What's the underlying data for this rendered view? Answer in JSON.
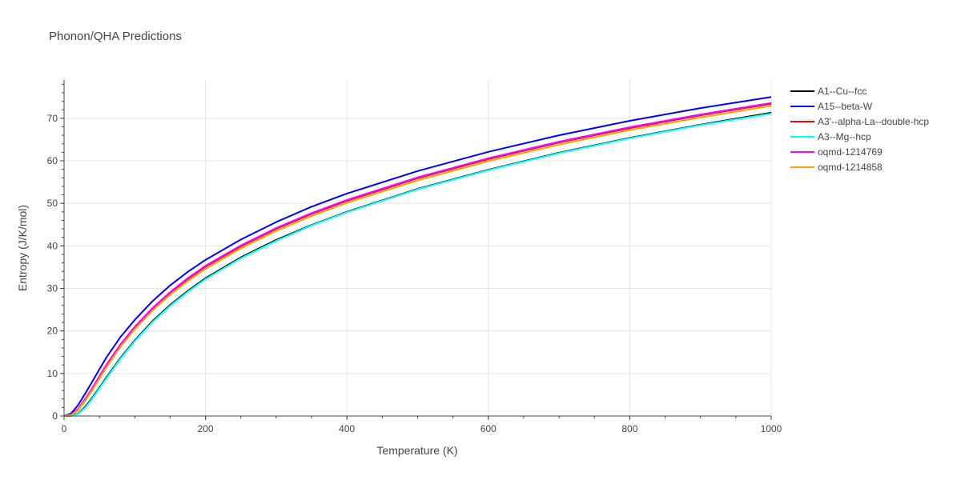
{
  "chart_data": {
    "type": "line",
    "title": "Phonon/QHA Predictions",
    "xlabel": "Temperature (K)",
    "ylabel": "Entropy (J/K/mol)",
    "xlim": [
      0,
      1000
    ],
    "ylim": [
      0,
      79
    ],
    "xticks": [
      0,
      200,
      400,
      600,
      800,
      1000
    ],
    "yticks": [
      0,
      10,
      20,
      30,
      40,
      50,
      60,
      70
    ],
    "grid": true,
    "legend_position": "top-right",
    "series": [
      {
        "name": "A1--Cu--fcc",
        "color": "#000000",
        "x": [
          0,
          10,
          20,
          30,
          40,
          50,
          60,
          80,
          100,
          125,
          150,
          175,
          200,
          250,
          300,
          350,
          400,
          500,
          600,
          700,
          800,
          900,
          1000
        ],
        "y": [
          0,
          0.05,
          0.6,
          2.2,
          4.3,
          6.7,
          9.1,
          13.7,
          17.8,
          22.3,
          26.1,
          29.4,
          32.4,
          37.3,
          41.4,
          44.9,
          48.0,
          53.4,
          57.9,
          61.9,
          65.4,
          68.5,
          71.3
        ]
      },
      {
        "name": "A15--beta-W",
        "color": "#0000ff",
        "x": [
          0,
          10,
          20,
          30,
          40,
          50,
          60,
          80,
          100,
          125,
          150,
          175,
          200,
          250,
          300,
          350,
          400,
          500,
          600,
          700,
          800,
          900,
          1000
        ],
        "y": [
          0,
          0.6,
          2.6,
          5.3,
          8.1,
          11.0,
          13.8,
          18.6,
          22.6,
          27.0,
          30.7,
          33.9,
          36.7,
          41.5,
          45.6,
          49.2,
          52.3,
          57.6,
          62.1,
          66.0,
          69.4,
          72.4,
          75.0
        ]
      },
      {
        "name": "A3'--alpha-La--double-hcp",
        "color": "#ff0000",
        "x": [
          0,
          10,
          20,
          30,
          40,
          50,
          60,
          80,
          100,
          125,
          150,
          175,
          200,
          250,
          300,
          350,
          400,
          500,
          600,
          700,
          800,
          900,
          1000
        ],
        "y": [
          0,
          0.3,
          1.6,
          3.9,
          6.5,
          9.3,
          12.0,
          16.8,
          20.9,
          25.3,
          29.0,
          32.2,
          35.1,
          39.9,
          44.0,
          47.5,
          50.6,
          55.9,
          60.4,
          64.3,
          67.7,
          70.7,
          73.4
        ]
      },
      {
        "name": "A3--Mg--hcp",
        "color": "#00ffff",
        "x": [
          0,
          10,
          20,
          30,
          40,
          50,
          60,
          80,
          100,
          125,
          150,
          175,
          200,
          250,
          300,
          350,
          400,
          500,
          600,
          700,
          800,
          900,
          1000
        ],
        "y": [
          0,
          0.04,
          0.5,
          2.0,
          4.1,
          6.5,
          8.9,
          13.5,
          17.6,
          22.1,
          25.9,
          29.2,
          32.2,
          37.1,
          41.2,
          44.8,
          47.9,
          53.3,
          57.8,
          61.8,
          65.3,
          68.4,
          71.1
        ]
      },
      {
        "name": "oqmd-1214769",
        "color": "#ff00ff",
        "x": [
          0,
          10,
          20,
          30,
          40,
          50,
          60,
          80,
          100,
          125,
          150,
          175,
          200,
          250,
          300,
          350,
          400,
          500,
          600,
          700,
          800,
          900,
          1000
        ],
        "y": [
          0,
          0.3,
          1.7,
          4.0,
          6.6,
          9.4,
          12.1,
          16.9,
          21.0,
          25.4,
          29.1,
          32.4,
          35.3,
          40.1,
          44.2,
          47.7,
          50.8,
          56.1,
          60.6,
          64.5,
          67.9,
          70.9,
          73.6
        ]
      },
      {
        "name": "oqmd-1214858",
        "color": "#ffa500",
        "x": [
          0,
          10,
          20,
          30,
          40,
          50,
          60,
          80,
          100,
          125,
          150,
          175,
          200,
          250,
          300,
          350,
          400,
          500,
          600,
          700,
          800,
          900,
          1000
        ],
        "y": [
          0,
          0.2,
          1.4,
          3.6,
          6.1,
          8.8,
          11.5,
          16.3,
          20.4,
          24.8,
          28.5,
          31.7,
          34.6,
          39.4,
          43.5,
          47.0,
          50.1,
          55.4,
          59.9,
          63.8,
          67.2,
          70.2,
          72.9
        ]
      }
    ]
  }
}
